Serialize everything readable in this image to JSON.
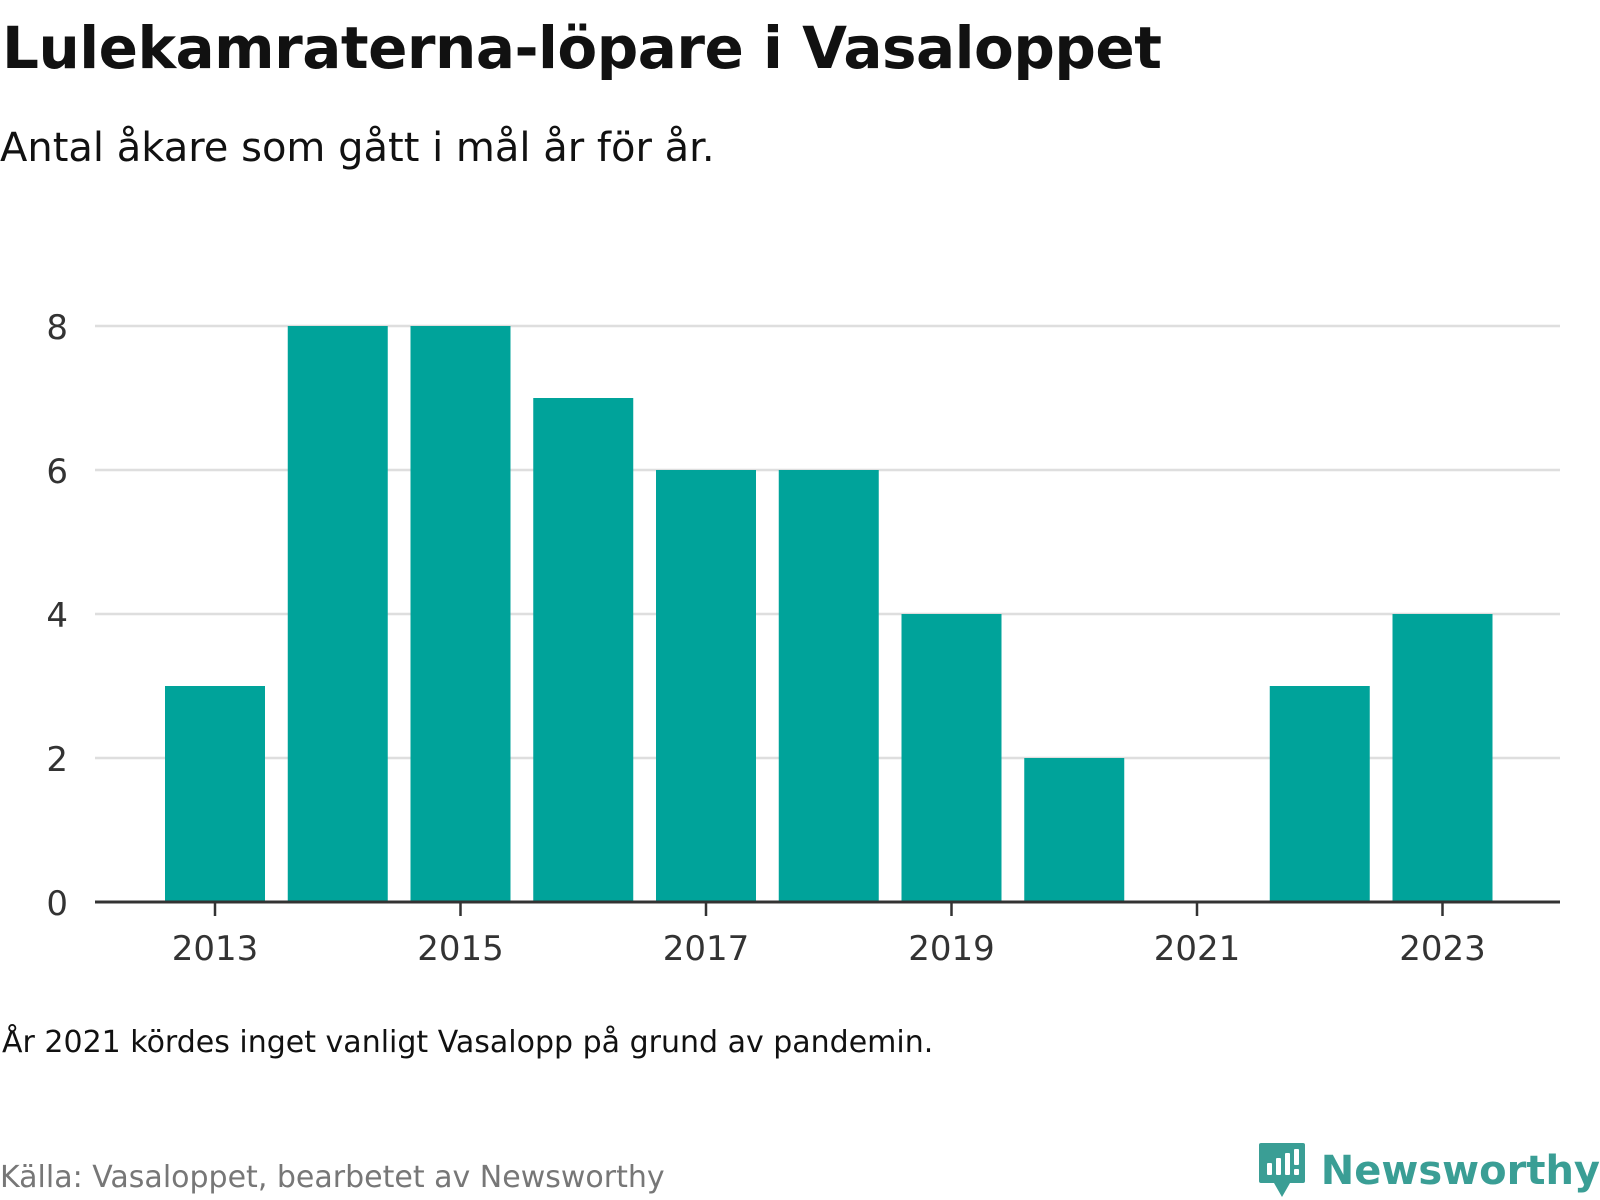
{
  "header": {
    "title": "Lulekamraterna-löpare i Vasaloppet",
    "subtitle": "Antal åkare som gått i mål år för år."
  },
  "footer": {
    "note": "År 2021 kördes inget vanligt Vasalopp på grund av pandemin.",
    "source": "Källa: Vasaloppet, bearbetet av Newsworthy",
    "brand": "Newsworthy",
    "brand_icon": "newsworthy-logo-icon"
  },
  "colors": {
    "bar": "#00a39a",
    "grid": "#dedede",
    "axis": "#333333",
    "tick_text": "#333333",
    "brand": "#3a9e95",
    "source_text": "#777777"
  },
  "chart_data": {
    "type": "bar",
    "title": "Lulekamraterna-löpare i Vasaloppet",
    "subtitle": "Antal åkare som gått i mål år för år.",
    "categories": [
      "2013",
      "2014",
      "2015",
      "2016",
      "2017",
      "2018",
      "2019",
      "2020",
      "2021",
      "2022",
      "2023"
    ],
    "values": [
      3,
      8,
      8,
      7,
      6,
      6,
      4,
      2,
      0,
      3,
      4
    ],
    "x_tick_labels": [
      "2013",
      "2015",
      "2017",
      "2019",
      "2021",
      "2023"
    ],
    "y_ticks": [
      0,
      2,
      4,
      6,
      8
    ],
    "ylim": [
      0,
      8
    ],
    "xlabel": "",
    "ylabel": "",
    "grid": true,
    "legend": "none"
  }
}
